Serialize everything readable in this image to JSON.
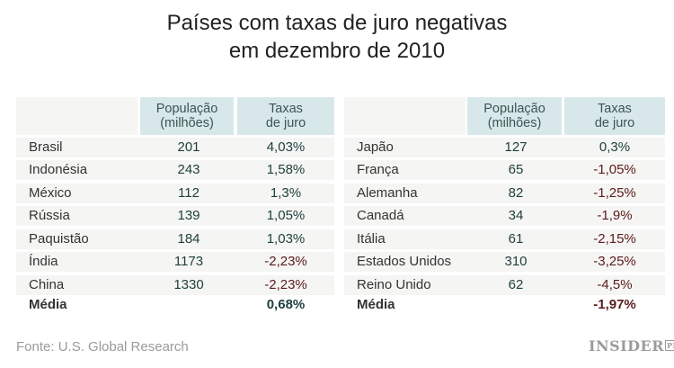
{
  "title_line1": "Países com taxas de juro negativas",
  "title_line2": "em dezembro de 2010",
  "colors": {
    "positive": "#1f403e",
    "negative": "#5a1c1c",
    "header_bg": "#d8e8ea",
    "row_bg": "#f5f5f3"
  },
  "chart_data": {
    "type": "table",
    "columns": [
      "",
      "População (milhões)",
      "Taxas de juro"
    ],
    "tables": [
      {
        "rows": [
          {
            "country": "Brasil",
            "population": "201",
            "rate": "4,03%"
          },
          {
            "country": "Indonésia",
            "population": "243",
            "rate": "1,58%"
          },
          {
            "country": "México",
            "population": "112",
            "rate": "1,3%"
          },
          {
            "country": "Rússia",
            "population": "139",
            "rate": "1,05%"
          },
          {
            "country": "Paquistão",
            "population": "184",
            "rate": "1,03%"
          },
          {
            "country": "Índia",
            "population": "1173",
            "rate": "-2,23%"
          },
          {
            "country": "China",
            "population": "1330",
            "rate": "-2,23%"
          }
        ],
        "average": {
          "label": "Média",
          "rate": "0,68%"
        }
      },
      {
        "rows": [
          {
            "country": "Japão",
            "population": "127",
            "rate": "0,3%"
          },
          {
            "country": "França",
            "population": "65",
            "rate": "-1,05%"
          },
          {
            "country": "Alemanha",
            "population": "82",
            "rate": "-1,25%"
          },
          {
            "country": "Canadá",
            "population": "34",
            "rate": "-1,9%"
          },
          {
            "country": "Itália",
            "population": "61",
            "rate": "-2,15%"
          },
          {
            "country": "Estados Unidos",
            "population": "310",
            "rate": "-3,25%"
          },
          {
            "country": "Reino Unido",
            "population": "62",
            "rate": "-4,5%"
          }
        ],
        "average": {
          "label": "Média",
          "rate": "-1,97%"
        }
      }
    ]
  },
  "headers": {
    "population_l1": "População",
    "population_l2": "(milhões)",
    "rate_l1": "Taxas",
    "rate_l2": "de juro"
  },
  "source": "Fonte: U.S. Global Research",
  "logo": {
    "text": "INSIDER",
    "badge": "PRO"
  }
}
